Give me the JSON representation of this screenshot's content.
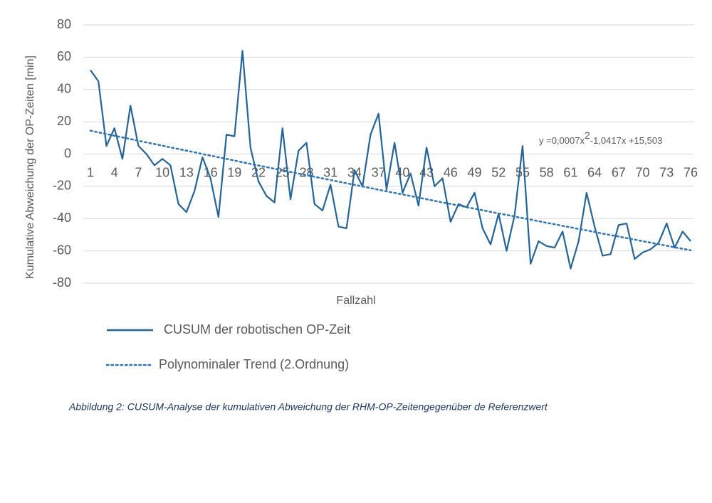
{
  "chart_data": {
    "type": "line",
    "y_axis_label": "Kumulative Abweichung der OP-Zeiten [min]",
    "x_axis_label": "Fallzahl",
    "caption": "Abbildung 2: CUSUM-Analyse der kumulativen Abweichung der RHM-OP-Zeitengegenüber de Referenzwert",
    "annotation": [
      "y =0,0007x",
      "2",
      "-1,0417x  +15,503"
    ],
    "ylim": [
      -80,
      80
    ],
    "yticks": [
      -80,
      -60,
      -40,
      -20,
      0,
      20,
      40,
      60,
      80
    ],
    "grid": true,
    "categories": [
      1,
      null,
      null,
      4,
      null,
      null,
      7,
      null,
      null,
      10,
      null,
      null,
      13,
      null,
      null,
      16,
      null,
      null,
      19,
      null,
      null,
      22,
      null,
      null,
      25,
      null,
      null,
      28,
      null,
      null,
      31,
      null,
      null,
      34,
      null,
      null,
      37,
      null,
      null,
      40,
      null,
      null,
      43,
      null,
      null,
      46,
      null,
      null,
      49,
      null,
      null,
      52,
      null,
      null,
      55,
      null,
      null,
      58,
      null,
      null,
      61,
      null,
      null,
      64,
      null,
      null,
      67,
      null,
      null,
      70,
      null,
      null,
      73,
      null,
      null,
      76
    ],
    "series": [
      {
        "name": "CUSUM der robotischen OP-Zeit",
        "color": "#23649b",
        "style": "solid",
        "values": [
          52,
          45,
          5,
          16,
          -3,
          30,
          5,
          0,
          -7,
          -3,
          -7,
          -31,
          -36,
          -23,
          -2,
          -15,
          -39,
          12,
          11,
          64,
          4,
          -17,
          -26,
          -30,
          16,
          -28,
          2,
          7,
          -31,
          -35,
          -19,
          -45,
          -46,
          -10,
          -20,
          12,
          25,
          -22,
          7,
          -24,
          -12,
          -32,
          4,
          -20,
          -15,
          -42,
          -31,
          -33,
          -24,
          -46,
          -56,
          -37,
          -60,
          -38,
          5,
          -68,
          -54,
          -57,
          -58,
          -48,
          -71,
          -54,
          -24,
          -45,
          -63,
          -62,
          -44,
          -43,
          -65,
          -61,
          -59,
          -55,
          -43,
          -58,
          -48,
          -54
        ]
      },
      {
        "name": "Polynominaler Trend (2.Ordnung)",
        "color": "#2e75b6",
        "style": "dotted",
        "values": [
          14.5,
          13.4,
          12.4,
          11.3,
          10.3,
          9.3,
          8.2,
          7.2,
          6.2,
          5.2,
          4.1,
          3.1,
          2.1,
          1.1,
          0.0,
          -1.0,
          -2.0,
          -3.0,
          -4.0,
          -5.1,
          -6.1,
          -7.1,
          -8.1,
          -9.1,
          -10.1,
          -11.1,
          -12.1,
          -13.1,
          -14.1,
          -15.1,
          -16.1,
          -17.1,
          -18.1,
          -19.1,
          -20.1,
          -21.1,
          -22.1,
          -23.1,
          -24.1,
          -25.0,
          -26.0,
          -27.0,
          -28.0,
          -29.0,
          -30.0,
          -30.9,
          -31.9,
          -32.9,
          -33.9,
          -34.8,
          -35.8,
          -36.8,
          -37.7,
          -38.7,
          -39.7,
          -40.6,
          -41.6,
          -42.6,
          -43.5,
          -44.5,
          -45.4,
          -46.4,
          -47.3,
          -48.3,
          -49.3,
          -50.2,
          -51.1,
          -52.1,
          -53.0,
          -54.0,
          -54.9,
          -55.9,
          -56.8,
          -57.8,
          -58.7,
          -59.6
        ]
      }
    ]
  }
}
